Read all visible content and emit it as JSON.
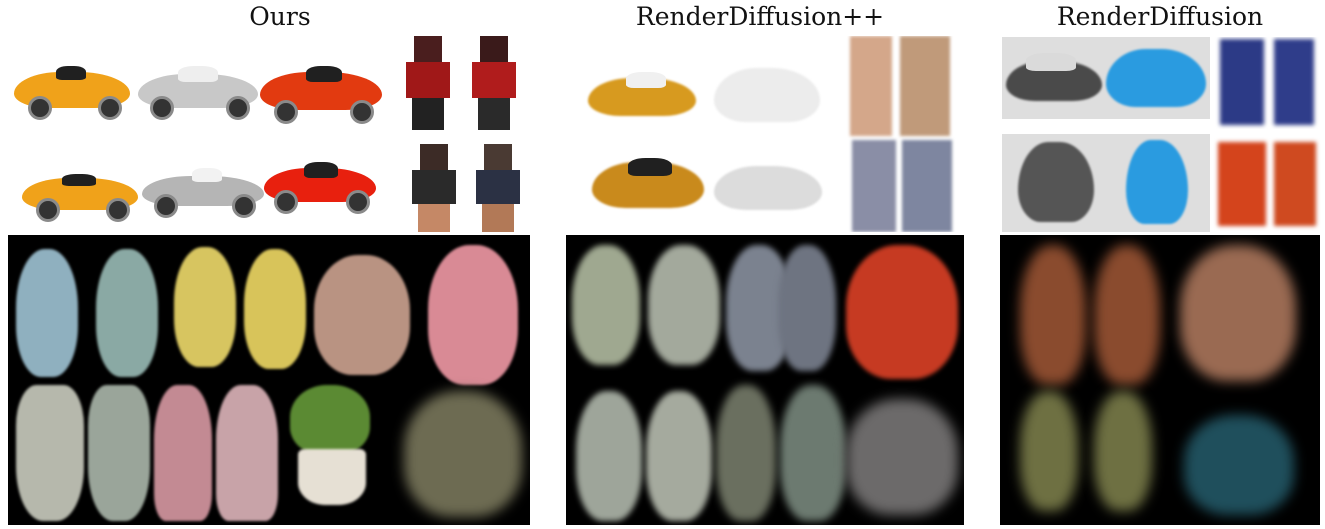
{
  "columns": [
    {
      "id": "ours",
      "title": "Ours"
    },
    {
      "id": "renderdiffusion_pp",
      "title": "RenderDiffusion++"
    },
    {
      "id": "renderdiffusion",
      "title": "RenderDiffusion"
    }
  ],
  "colors": {
    "car_orange": "#f0a21a",
    "car_silver": "#c8c8c8",
    "car_red": "#e23a10",
    "car_blue": "#2a9be0",
    "hydrant_blue": "#6fa6c6",
    "hydrant_yellow": "#d9c45a",
    "teddy_pink": "#d98a95",
    "teddy_red": "#c63a22",
    "vase_pink": "#c38a93",
    "plant_green": "#5b8a33"
  }
}
